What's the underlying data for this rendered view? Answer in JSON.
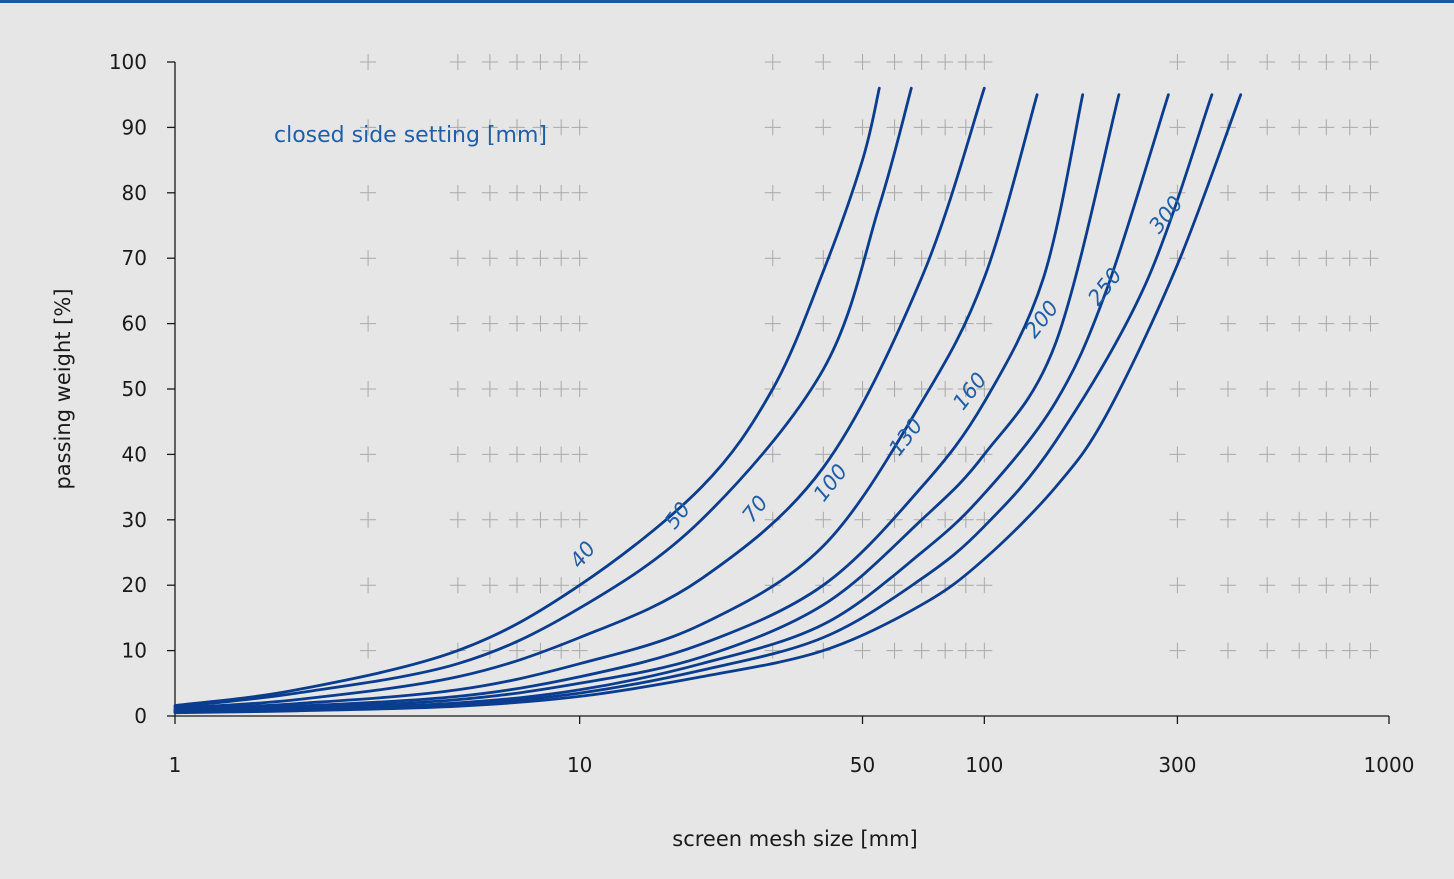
{
  "chart_data": {
    "type": "line",
    "x_scale": "log",
    "xlim": [
      1,
      1000
    ],
    "ylim": [
      0,
      100
    ],
    "xlabel": "screen mesh size [mm]",
    "ylabel": "passing weight [%]",
    "annotation": "closed side setting [mm]",
    "x_ticks": [
      {
        "v": 1,
        "label": "1"
      },
      {
        "v": 10,
        "label": "10"
      },
      {
        "v": 50,
        "label": "50"
      },
      {
        "v": 100,
        "label": "100"
      },
      {
        "v": 300,
        "label": "300"
      },
      {
        "v": 1000,
        "label": "1000"
      }
    ],
    "y_ticks": [
      0,
      10,
      20,
      30,
      40,
      50,
      60,
      70,
      80,
      90,
      100
    ],
    "grid": "cross markers",
    "colors": {
      "curve": "#0a3d8f",
      "label": "#1f5fa8",
      "grid": "#a9a9a9",
      "background": "#e6e6e6"
    },
    "series": [
      {
        "name": "40",
        "label_at": [
          10.5,
          24
        ],
        "points": [
          [
            1,
            1.6
          ],
          [
            2,
            4
          ],
          [
            5,
            10
          ],
          [
            10,
            20
          ],
          [
            20,
            35
          ],
          [
            30,
            50
          ],
          [
            40,
            68
          ],
          [
            50,
            85
          ],
          [
            55,
            96
          ]
        ]
      },
      {
        "name": "50",
        "label_at": [
          18,
          30
        ],
        "points": [
          [
            1,
            1.4
          ],
          [
            2,
            3.5
          ],
          [
            5,
            8
          ],
          [
            10,
            16.5
          ],
          [
            20,
            30
          ],
          [
            40,
            53
          ],
          [
            55,
            78
          ],
          [
            66,
            96
          ]
        ]
      },
      {
        "name": "70",
        "label_at": [
          28,
          31
        ],
        "points": [
          [
            1,
            1.2
          ],
          [
            2,
            2.5
          ],
          [
            5,
            6
          ],
          [
            10,
            12
          ],
          [
            20,
            21
          ],
          [
            40,
            38
          ],
          [
            70,
            67
          ],
          [
            100,
            96
          ]
        ]
      },
      {
        "name": "100",
        "label_at": [
          43,
          35
        ],
        "points": [
          [
            1,
            1
          ],
          [
            2,
            1.9
          ],
          [
            5,
            4
          ],
          [
            10,
            8
          ],
          [
            20,
            14
          ],
          [
            40,
            26
          ],
          [
            70,
            48
          ],
          [
            100,
            67
          ],
          [
            135,
            95
          ]
        ]
      },
      {
        "name": "130",
        "label_at": [
          66,
          42
        ],
        "points": [
          [
            1,
            0.9
          ],
          [
            2,
            1.5
          ],
          [
            5,
            3
          ],
          [
            10,
            6
          ],
          [
            20,
            11
          ],
          [
            40,
            20
          ],
          [
            70,
            35
          ],
          [
            100,
            48
          ],
          [
            140,
            67
          ],
          [
            175,
            95
          ]
        ]
      },
      {
        "name": "160",
        "label_at": [
          95,
          49
        ],
        "points": [
          [
            1,
            0.8
          ],
          [
            2,
            1.2
          ],
          [
            5,
            2.5
          ],
          [
            10,
            5
          ],
          [
            20,
            9
          ],
          [
            40,
            17
          ],
          [
            70,
            30
          ],
          [
            100,
            40
          ],
          [
            150,
            57
          ],
          [
            215,
            95
          ]
        ]
      },
      {
        "name": "200",
        "label_at": [
          143,
          60
        ],
        "points": [
          [
            1,
            0.7
          ],
          [
            2,
            1
          ],
          [
            5,
            2
          ],
          [
            10,
            4
          ],
          [
            20,
            8
          ],
          [
            40,
            14
          ],
          [
            70,
            25
          ],
          [
            100,
            34
          ],
          [
            150,
            48
          ],
          [
            200,
            65
          ],
          [
            285,
            95
          ]
        ]
      },
      {
        "name": "250",
        "label_at": [
          205,
          65
        ],
        "points": [
          [
            1,
            0.6
          ],
          [
            2,
            0.9
          ],
          [
            5,
            1.8
          ],
          [
            10,
            3.5
          ],
          [
            20,
            7
          ],
          [
            40,
            12
          ],
          [
            70,
            21
          ],
          [
            100,
            29
          ],
          [
            150,
            42
          ],
          [
            250,
            66
          ],
          [
            365,
            95
          ]
        ]
      },
      {
        "name": "300",
        "label_at": [
          290,
          76
        ],
        "points": [
          [
            1,
            0.5
          ],
          [
            2,
            0.8
          ],
          [
            5,
            1.5
          ],
          [
            10,
            3
          ],
          [
            20,
            6
          ],
          [
            40,
            10
          ],
          [
            70,
            17
          ],
          [
            100,
            24
          ],
          [
            150,
            35
          ],
          [
            200,
            46
          ],
          [
            300,
            69
          ],
          [
            430,
            95
          ]
        ]
      }
    ]
  }
}
